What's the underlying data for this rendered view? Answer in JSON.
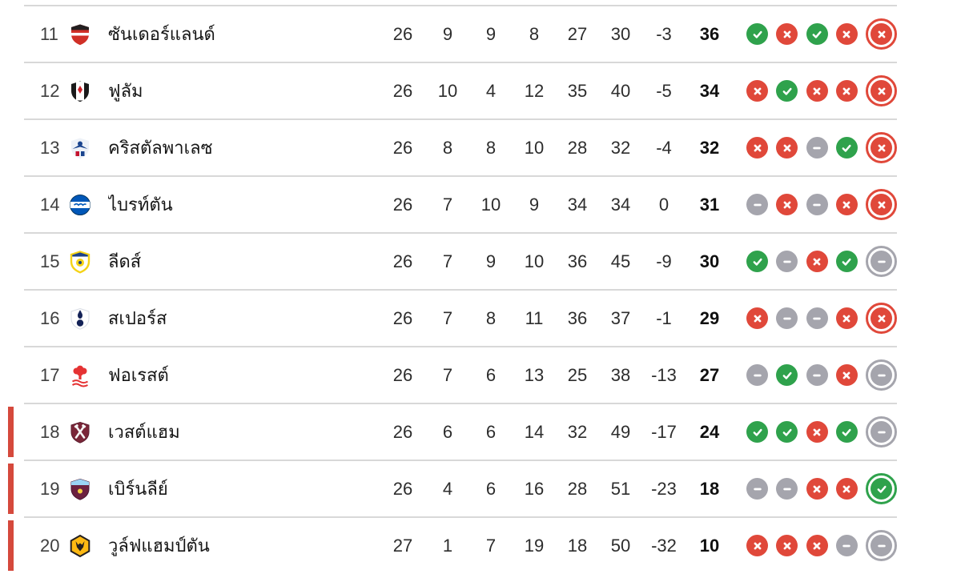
{
  "colors": {
    "win": "#2fa24c",
    "loss": "#e0483a",
    "draw": "#a5a5ad",
    "relegation_bar": "#d5493c",
    "divider": "#d8d8d8"
  },
  "form_legend": {
    "W": "win",
    "L": "loss",
    "D": "draw"
  },
  "table": {
    "rows": [
      {
        "pos": 11,
        "name": "ซันเดอร์แลนด์",
        "badge": {
          "icon": "sunderland-badge",
          "colors": [
            "#d03027",
            "#231f20",
            "#ffffff"
          ]
        },
        "played": 26,
        "won": 9,
        "drawn": 9,
        "lost": 8,
        "gf": 27,
        "ga": 30,
        "gd": "-3",
        "pts": 36,
        "form": [
          "W",
          "L",
          "W",
          "L",
          "L"
        ],
        "relegation": false
      },
      {
        "pos": 12,
        "name": "ฟูลัม",
        "badge": {
          "icon": "fulham-badge",
          "colors": [
            "#ffffff",
            "#1a1a1a",
            "#cc2229"
          ]
        },
        "played": 26,
        "won": 10,
        "drawn": 4,
        "lost": 12,
        "gf": 35,
        "ga": 40,
        "gd": "-5",
        "pts": 34,
        "form": [
          "L",
          "W",
          "L",
          "L",
          "L"
        ],
        "relegation": false
      },
      {
        "pos": 13,
        "name": "คริสตัลพาเลซ",
        "badge": {
          "icon": "crystal-palace-badge",
          "colors": [
            "#1b458f",
            "#c4122e",
            "#eef2f8"
          ]
        },
        "played": 26,
        "won": 8,
        "drawn": 8,
        "lost": 10,
        "gf": 28,
        "ga": 32,
        "gd": "-4",
        "pts": 32,
        "form": [
          "L",
          "L",
          "D",
          "W",
          "L"
        ],
        "relegation": false
      },
      {
        "pos": 14,
        "name": "ไบรท์ตัน",
        "badge": {
          "icon": "brighton-badge",
          "colors": [
            "#0057b8",
            "#ffffff",
            "#00345f"
          ]
        },
        "played": 26,
        "won": 7,
        "drawn": 10,
        "lost": 9,
        "gf": 34,
        "ga": 34,
        "gd": "0",
        "pts": 31,
        "form": [
          "D",
          "L",
          "D",
          "L",
          "L"
        ],
        "relegation": false
      },
      {
        "pos": 15,
        "name": "ลีดส์",
        "badge": {
          "icon": "leeds-badge",
          "colors": [
            "#ffffff",
            "#f5d317",
            "#1d428a"
          ]
        },
        "played": 26,
        "won": 7,
        "drawn": 9,
        "lost": 10,
        "gf": 36,
        "ga": 45,
        "gd": "-9",
        "pts": 30,
        "form": [
          "W",
          "D",
          "L",
          "W",
          "D"
        ],
        "relegation": false
      },
      {
        "pos": 16,
        "name": "สเปอร์ส",
        "badge": {
          "icon": "spurs-badge",
          "colors": [
            "#ffffff",
            "#132257",
            "#d9dde5"
          ]
        },
        "played": 26,
        "won": 7,
        "drawn": 8,
        "lost": 11,
        "gf": 36,
        "ga": 37,
        "gd": "-1",
        "pts": 29,
        "form": [
          "L",
          "D",
          "D",
          "L",
          "L"
        ],
        "relegation": false
      },
      {
        "pos": 17,
        "name": "ฟอเรสต์",
        "badge": {
          "icon": "forest-badge",
          "colors": [
            "#e53233",
            "#ffffff",
            "#ffffff"
          ]
        },
        "played": 26,
        "won": 7,
        "drawn": 6,
        "lost": 13,
        "gf": 25,
        "ga": 38,
        "gd": "-13",
        "pts": 27,
        "form": [
          "D",
          "W",
          "D",
          "L",
          "D"
        ],
        "relegation": false
      },
      {
        "pos": 18,
        "name": "เวสต์แฮม",
        "badge": {
          "icon": "west-ham-badge",
          "colors": [
            "#7a2638",
            "#f6f6f6",
            "#a3c6e8"
          ]
        },
        "played": 26,
        "won": 6,
        "drawn": 6,
        "lost": 14,
        "gf": 32,
        "ga": 49,
        "gd": "-17",
        "pts": 24,
        "form": [
          "W",
          "W",
          "L",
          "W",
          "D"
        ],
        "relegation": true
      },
      {
        "pos": 19,
        "name": "เบิร์นลีย์",
        "badge": {
          "icon": "burnley-badge",
          "colors": [
            "#6c2140",
            "#9bd4f5",
            "#f4d03f"
          ]
        },
        "played": 26,
        "won": 4,
        "drawn": 6,
        "lost": 16,
        "gf": 28,
        "ga": 51,
        "gd": "-23",
        "pts": 18,
        "form": [
          "D",
          "D",
          "L",
          "L",
          "W"
        ],
        "relegation": true
      },
      {
        "pos": 20,
        "name": "วูล์ฟแฮมป์ตัน",
        "badge": {
          "icon": "wolves-badge",
          "colors": [
            "#fdb913",
            "#231f20",
            "#000000"
          ]
        },
        "played": 27,
        "won": 1,
        "drawn": 7,
        "lost": 19,
        "gf": 18,
        "ga": 50,
        "gd": "-32",
        "pts": 10,
        "form": [
          "L",
          "L",
          "L",
          "D",
          "D"
        ],
        "relegation": true
      }
    ]
  }
}
